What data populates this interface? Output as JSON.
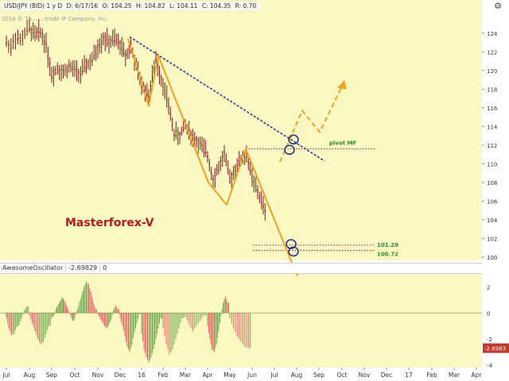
{
  "header": {
    "symbol": "USD/JPY (BID) 1 y D",
    "date": "D: 6/17/16",
    "open": "O: 104.25",
    "high": "H: 104.82",
    "low": "L: 104.11",
    "close": "C: 104.35",
    "range": "R: 0.70"
  },
  "copyright": "2016 © TS… …trade IP Company, Inc.",
  "oscillator": {
    "name": "AwesomeOscillator",
    "value": "-2.69829",
    "param": "0",
    "last_label": "-2.6983"
  },
  "colors": {
    "pane_bg": "#fbf8c4",
    "bar": "#7a1a1a",
    "orange": "#f2a31e",
    "trendline": "#1c2f8c",
    "level": "#c03030",
    "osc_up": "#6aa84f",
    "osc_down": "#e06666",
    "label_green": "#2f8c2f",
    "watermark": "#b31b1b"
  },
  "chart_data": {
    "type": "candlestick",
    "instrument": "USD/JPY",
    "price_axis": {
      "ylim": [
        100,
        125
      ],
      "ticks": [
        "124",
        "122",
        "120",
        "118",
        "116",
        "114",
        "112",
        "110",
        "108",
        "106",
        "104",
        "102",
        "100"
      ]
    },
    "x_axis": {
      "ticks": [
        "Jul",
        "Aug",
        "Sep",
        "Oct",
        "Nov",
        "Dec",
        "16",
        "Feb",
        "Mar",
        "Apr",
        "May",
        "Jun",
        "Jul",
        "Aug",
        "Sep",
        "Oct",
        "Nov",
        "Dec",
        "17",
        "Feb",
        "Mar",
        "Apr"
      ]
    },
    "price_path": [
      [
        "Jul",
        123.0
      ],
      [
        "Jul",
        122.6
      ],
      [
        "Jul",
        123.6
      ],
      [
        "Jul",
        123.2
      ],
      [
        "Jul",
        124.0
      ],
      [
        "Aug",
        124.5
      ],
      [
        "Aug",
        123.8
      ],
      [
        "Aug",
        124.1
      ],
      [
        "Aug",
        122.8
      ],
      [
        "Sep",
        119.5
      ],
      [
        "Sep",
        120.3
      ],
      [
        "Sep",
        119.8
      ],
      [
        "Sep",
        120.4
      ],
      [
        "Oct",
        120.0
      ],
      [
        "Oct",
        119.6
      ],
      [
        "Oct",
        120.6
      ],
      [
        "Oct",
        121.1
      ],
      [
        "Nov",
        122.5
      ],
      [
        "Nov",
        123.5
      ],
      [
        "Nov",
        123.0
      ],
      [
        "Nov",
        123.3
      ],
      [
        "Dec",
        122.8
      ],
      [
        "Dec",
        121.6
      ],
      [
        "Dec",
        122.5
      ],
      [
        "Dec",
        120.4
      ],
      [
        "16",
        118.4
      ],
      [
        "16",
        117.4
      ],
      [
        "16",
        121.2
      ],
      [
        "Feb",
        118.5
      ],
      [
        "Feb",
        116.2
      ],
      [
        "Feb",
        113.3
      ],
      [
        "Feb",
        113.0
      ],
      [
        "Mar",
        114.2
      ],
      [
        "Mar",
        112.8
      ],
      [
        "Mar",
        112.1
      ],
      [
        "Apr",
        110.9
      ],
      [
        "Apr",
        108.4
      ],
      [
        "Apr",
        109.6
      ],
      [
        "Apr",
        111.1
      ],
      [
        "May",
        108.3
      ],
      [
        "May",
        109.5
      ],
      [
        "May",
        110.5
      ],
      [
        "May",
        111.0
      ],
      [
        "Jun",
        108.4
      ],
      [
        "Jun",
        106.5
      ],
      [
        "Jun",
        104.35
      ]
    ],
    "levels": [
      {
        "label": "pivot MF",
        "value": 111.6
      },
      {
        "label": "101.29",
        "value": 101.29
      },
      {
        "label": "100.72",
        "value": 100.72
      }
    ],
    "trendline": [
      [
        "Dec",
        123.6
      ],
      [
        "Sep",
        110.3
      ]
    ],
    "orange_path_past": [
      [
        "Dec",
        123.4
      ],
      [
        "16",
        116.2
      ],
      [
        "Feb",
        121.6
      ],
      [
        "Apr",
        108.0
      ],
      [
        "May",
        105.6
      ],
      [
        "May",
        111.6
      ],
      [
        "Jul",
        99.6
      ]
    ],
    "orange_path_forecast": [
      [
        "Jul",
        110.2
      ],
      [
        "Aug",
        115.7
      ],
      [
        "Sep",
        113.4
      ],
      [
        "Oct",
        118.3
      ]
    ],
    "annotations": [
      "Masterforex-V",
      "pivot MF",
      "101.29",
      "100.72"
    ],
    "oscillator": {
      "name": "AwesomeOscillator",
      "ylim": [
        -4,
        3
      ],
      "ticks": [
        "2",
        "0",
        "-2",
        "-4"
      ],
      "last_value": -2.6983,
      "segments": [
        {
          "from": "Jul",
          "to": "Aug",
          "values": [
            -0.4,
            -1.2,
            -1.7,
            -1.6,
            -1.1,
            -0.9,
            -0.4,
            0.2,
            0.5
          ]
        },
        {
          "from": "Aug",
          "to": "Sep",
          "values": [
            -0.2,
            -0.8,
            -1.4,
            -2.0,
            -2.4,
            -2.2,
            -1.6,
            -1.0
          ]
        },
        {
          "from": "Sep",
          "to": "Oct",
          "values": [
            -0.4,
            -0.2,
            0.3,
            0.6,
            0.9,
            1.2,
            1.0,
            0.6,
            0.2,
            -0.2,
            -0.6
          ]
        },
        {
          "from": "Oct",
          "to": "Nov",
          "values": [
            -0.4,
            0.2,
            0.8,
            1.4,
            2.0,
            2.4,
            2.2,
            1.6,
            0.9,
            0.3
          ]
        },
        {
          "from": "Nov",
          "to": "Dec",
          "values": [
            -0.1,
            -0.4,
            -0.7,
            -1.0,
            -1.2,
            -0.9,
            -0.5,
            0.2,
            0.6,
            0.3
          ]
        },
        {
          "from": "Dec",
          "to": "16",
          "values": [
            -0.4,
            -1.0,
            -1.8,
            -2.6,
            -3.0,
            -2.4,
            -1.5,
            -0.8,
            -0.1
          ]
        },
        {
          "from": "16",
          "to": "Feb",
          "values": [
            -1.6,
            -2.8,
            -3.4,
            -3.8,
            -3.4,
            -2.8,
            -2.0,
            -1.2,
            -0.4
          ]
        },
        {
          "from": "Feb",
          "to": "Mar",
          "values": [
            -1.2,
            -2.4,
            -3.2,
            -2.8,
            -2.0,
            -1.2,
            -0.4
          ]
        },
        {
          "from": "Mar",
          "to": "Apr",
          "values": [
            -0.3,
            -0.9,
            -1.4,
            -1.0,
            -0.6,
            -0.2
          ]
        },
        {
          "from": "Apr",
          "to": "May",
          "values": [
            -1.0,
            -2.0,
            -2.8,
            -3.0,
            -2.4,
            -1.4,
            -0.2,
            0.8,
            1.3,
            0.8
          ]
        },
        {
          "from": "May",
          "to": "Jun",
          "values": [
            -0.4,
            -1.2,
            -1.8,
            -2.2,
            -2.6,
            -2.7
          ]
        }
      ]
    }
  }
}
